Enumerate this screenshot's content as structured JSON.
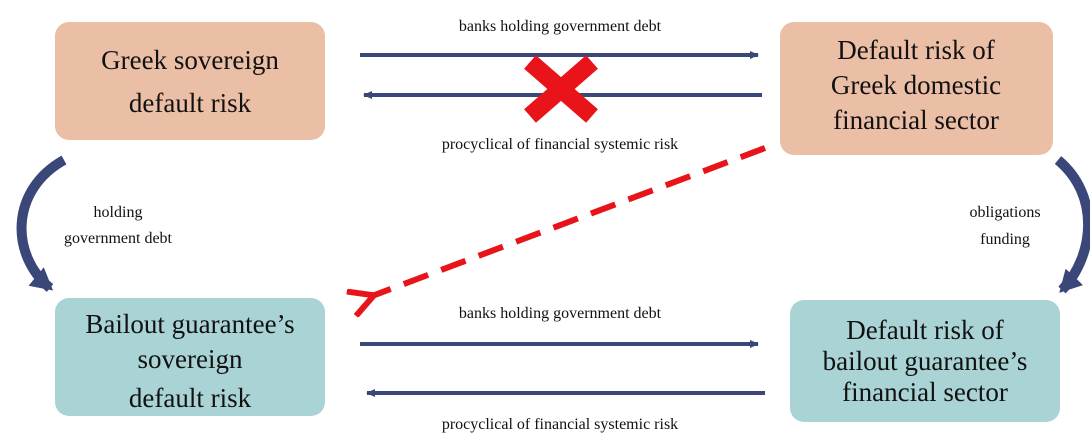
{
  "nodes": [
    {
      "lines": [
        "Greek sovereign",
        "default risk"
      ]
    },
    {
      "lines": [
        "Default risk of",
        "Greek domestic",
        "financial sector"
      ]
    },
    {
      "lines": [
        "Bailout guarantee’s",
        "sovereign",
        "default risk"
      ]
    },
    {
      "lines": [
        "Default risk of",
        "bailout guarantee’s",
        "financial sector"
      ]
    }
  ],
  "edges": [
    {
      "label": "banks holding government debt"
    },
    {
      "label": "procyclical of financial systemic risk"
    },
    {
      "label": "banks holding government debt"
    },
    {
      "label": "procyclical of financial systemic risk"
    },
    {
      "lines": [
        "holding",
        "government debt"
      ]
    },
    {
      "lines": [
        "obligations",
        "funding"
      ]
    }
  ]
}
